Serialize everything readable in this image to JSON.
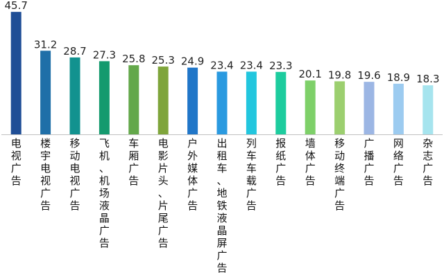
{
  "chart_data": {
    "type": "bar",
    "categories": [
      "电视广告",
      "楼宇电视广告",
      "移动电视广告",
      "飞机、机场液晶广告",
      "车厢广告",
      "电影片头、片尾广告",
      "户外媒体广告",
      "出租车、地铁液晶屏广告",
      "列车车载广告",
      "报纸广告",
      "墙体广告",
      "移动终端广告",
      "广播广告",
      "网络广告",
      "杂志广告"
    ],
    "values": [
      45.7,
      31.2,
      28.7,
      27.3,
      25.8,
      25.3,
      24.9,
      23.4,
      23.4,
      23.3,
      20.1,
      19.8,
      19.6,
      18.9,
      18.3
    ],
    "value_labels": [
      "45.7",
      "31.2",
      "28.7",
      "27.3",
      "25.8",
      "25.3",
      "24.9",
      "23.4",
      "23.4",
      "23.3",
      "20.1",
      "19.8",
      "19.6",
      "18.9",
      "18.3"
    ],
    "colors": [
      "#1f4e96",
      "#1f6fa8",
      "#12928f",
      "#149a6e",
      "#63a84a",
      "#7fa53b",
      "#2076c8",
      "#2a9ae0",
      "#22c6de",
      "#1dcc9e",
      "#7ed069",
      "#9ccf6f",
      "#9cb6e4",
      "#9ccbf0",
      "#a6e4ee"
    ],
    "ylim": [
      0,
      46
    ],
    "grid": false,
    "legend": "none",
    "title": "",
    "xlabel": "",
    "ylabel": ""
  }
}
